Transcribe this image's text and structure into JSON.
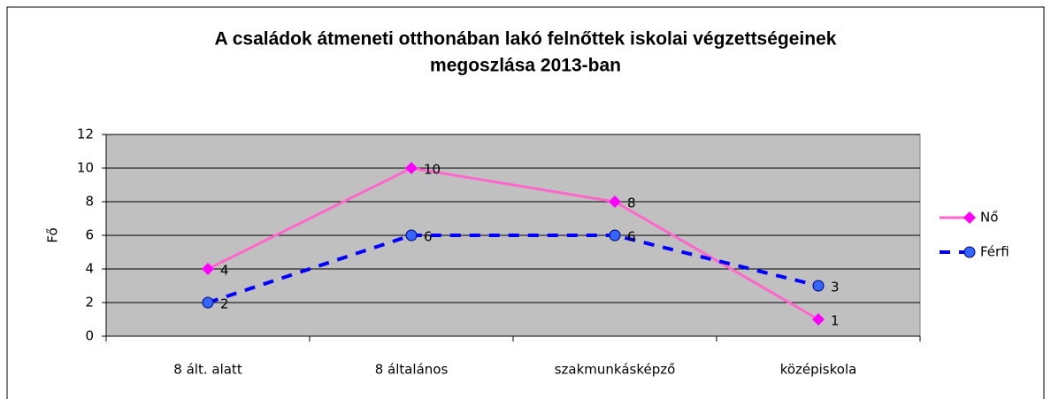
{
  "chart_data": {
    "type": "line",
    "title": [
      "A családok átmeneti otthonában lakó felnőttek iskolai végzettségeinek",
      "megoszlása 2013-ban"
    ],
    "ylabel": "Fő",
    "categories": [
      "8 ált. alatt",
      "8 általános",
      "szakmunkásképző",
      "középiskola"
    ],
    "series": [
      {
        "name": "Nő",
        "color": "#ff66cc",
        "marker_color": "#ff00ff",
        "values": [
          4,
          10,
          8,
          1
        ]
      },
      {
        "name": "Férfi",
        "color": "#0000ff",
        "marker_color": "#3366ff",
        "dashed": true,
        "values": [
          2,
          6,
          6,
          3
        ]
      }
    ],
    "ylim": [
      0,
      12
    ],
    "yticks": [
      0,
      2,
      4,
      6,
      8,
      10,
      12
    ],
    "grid": true,
    "legend": "right"
  }
}
